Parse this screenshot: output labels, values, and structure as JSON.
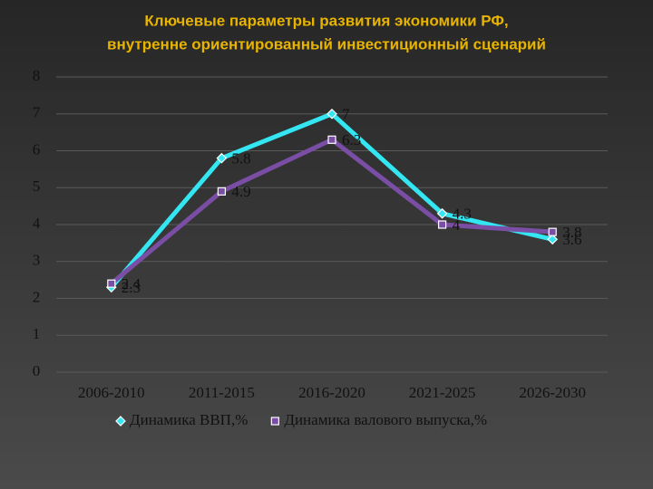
{
  "chart_data": {
    "type": "line",
    "title": [
      "Ключевые параметры развития экономики РФ,",
      "внутренне ориентированный  инвестиционный сценарий"
    ],
    "categories": [
      "2006-2010",
      "2011-2015",
      "2016-2020",
      "2021-2025",
      "2026-2030"
    ],
    "series": [
      {
        "name": "Динамика ВВП,%",
        "color": "#33e6f2",
        "marker": "diamond",
        "values": [
          2.3,
          5.8,
          7,
          4.3,
          3.6
        ]
      },
      {
        "name": "Динамика валового выпуска,%",
        "color": "#7b4ea6",
        "marker": "square",
        "values": [
          2.4,
          4.9,
          6.3,
          4,
          3.8
        ]
      }
    ],
    "ylim": [
      0,
      8
    ],
    "yticks": [
      0,
      1,
      2,
      3,
      4,
      5,
      6,
      7,
      8
    ],
    "grid": true,
    "legend": "bottom"
  }
}
